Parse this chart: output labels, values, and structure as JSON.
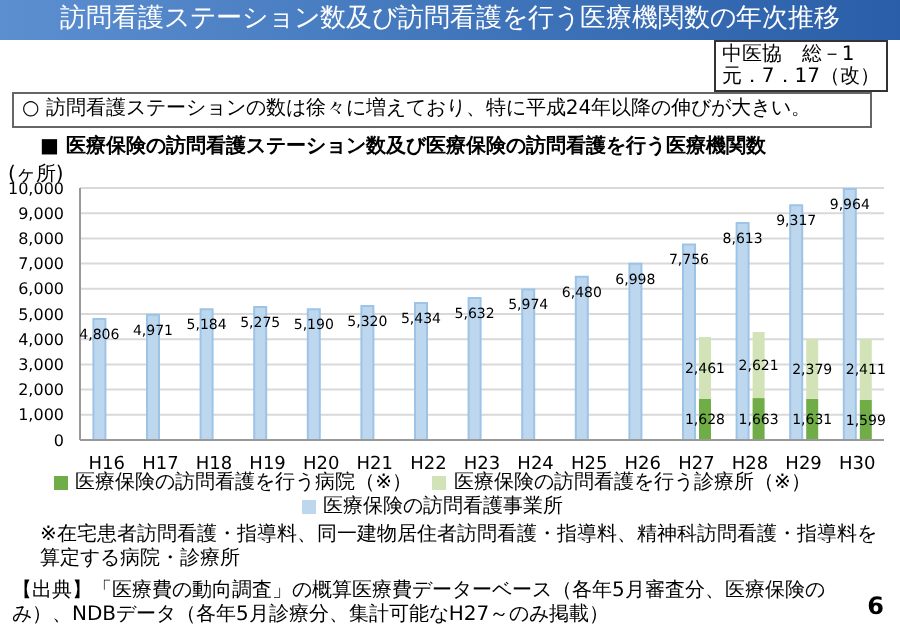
{
  "chart_data": {
    "type": "bar",
    "title": "訪問看護ステーション数及び訪問看護を行う医療機関数の年次推移",
    "subtitle": "○ 訪問看護ステーションの数は徐々に増えており、特に平成24年以降の伸びが大きい。",
    "annotations": [
      "中医協　総－1",
      "元．7．17（改）",
      "■ 医療保険の訪問看護ステーション数及び医療保険の訪問看護を行う医療機関数",
      "※在宅患者訪問看護・指導料、同一建物居住者訪問看護・指導料、精神科訪問看護・指導料を算定する病院・診療所",
      "【出典】「医療費の動向調査」の概算医療費データーベース（各年5月審査分、医療保険のみ）、NDBデータ（各年5月診療分、集計可能なH27～のみ掲載）",
      "6"
    ],
    "ylabel": "(ヶ所)",
    "categories": [
      "H16",
      "H17",
      "H18",
      "H19",
      "H20",
      "H21",
      "H22",
      "H23",
      "H24",
      "H25",
      "H26",
      "H27",
      "H28",
      "H29",
      "H30"
    ],
    "series": [
      {
        "name": "医療保険の訪問看護事業所",
        "color": "#bdd7ee",
        "values": [
          4806,
          4971,
          5184,
          5275,
          5190,
          5320,
          5434,
          5632,
          5974,
          6480,
          6998,
          7756,
          8613,
          9317,
          9964
        ],
        "value_labels": [
          "4,806",
          "4,971",
          "5,184",
          "5,275",
          "5,190",
          "5,320",
          "5,434",
          "5,632",
          "5,974",
          "6,480",
          "6,998",
          "7,756",
          "8,613",
          "9,317",
          "9,964"
        ]
      },
      {
        "name": "医療保険の訪問看護を行う病院（※）",
        "color": "#70ad47",
        "values": [
          null,
          null,
          null,
          null,
          null,
          null,
          null,
          null,
          null,
          null,
          null,
          1628,
          1663,
          1631,
          1599
        ],
        "value_labels": [
          null,
          null,
          null,
          null,
          null,
          null,
          null,
          null,
          null,
          null,
          null,
          "1,628",
          "1,663",
          "1,631",
          "1,599"
        ]
      },
      {
        "name": "医療保険の訪問看護を行う診療所（※）",
        "color": "#d3e3b8",
        "values": [
          null,
          null,
          null,
          null,
          null,
          null,
          null,
          null,
          null,
          null,
          null,
          2461,
          2621,
          2379,
          2411
        ],
        "base": [
          null,
          null,
          null,
          null,
          null,
          null,
          null,
          null,
          null,
          null,
          null,
          1628,
          1663,
          1631,
          1599
        ],
        "value_labels": [
          null,
          null,
          null,
          null,
          null,
          null,
          null,
          null,
          null,
          null,
          null,
          "2,461",
          "2,621",
          "2,379",
          "2,411"
        ]
      }
    ],
    "ylim": [
      0,
      10000
    ],
    "yticks": [
      {
        "value": 0,
        "label": "0"
      },
      {
        "value": 1000,
        "label": "1,000"
      },
      {
        "value": 2000,
        "label": "2,000"
      },
      {
        "value": 3000,
        "label": "3,000"
      },
      {
        "value": 4000,
        "label": "4,000"
      },
      {
        "value": 5000,
        "label": "5,000"
      },
      {
        "value": 6000,
        "label": "6,000"
      },
      {
        "value": 7000,
        "label": "7,000"
      },
      {
        "value": 8000,
        "label": "8,000"
      },
      {
        "value": 9000,
        "label": "9,000"
      },
      {
        "value": 10000,
        "label": "10,000"
      }
    ],
    "grid": "y",
    "legend": "bottom"
  }
}
